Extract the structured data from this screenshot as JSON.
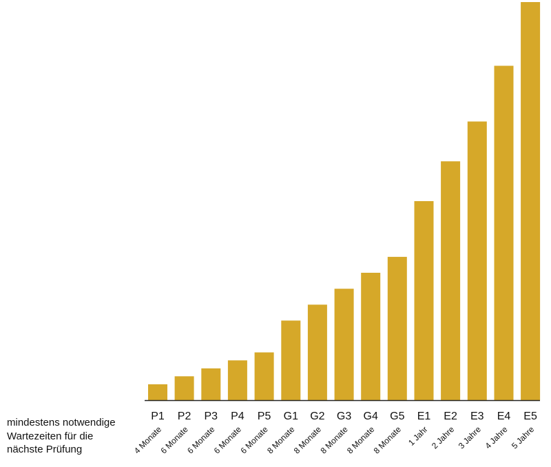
{
  "chart_data": {
    "type": "bar",
    "title": "",
    "xlabel": "",
    "ylabel": "",
    "ylim": [
      0,
      100
    ],
    "grid": false,
    "categories": [
      "P1",
      "P2",
      "P3",
      "P4",
      "P5",
      "G1",
      "G2",
      "G3",
      "G4",
      "G5",
      "E1",
      "E2",
      "E3",
      "E4",
      "E5"
    ],
    "values": [
      4,
      6,
      8,
      10,
      12,
      20,
      24,
      28,
      32,
      36,
      50,
      60,
      70,
      84,
      100
    ],
    "waiting_times": [
      "4 Monate",
      "6 Monate",
      "6 Monate",
      "6 Monate",
      "6 Monate",
      "8 Monate",
      "8 Monate",
      "8 Monate",
      "8 Monate",
      "8 Monate",
      "1 Jahr",
      "2 Jahre",
      "3 Jahre",
      "4 Jahre",
      "5 Jahre"
    ],
    "bar_color": "#D6A829",
    "axis_color": "#222222"
  },
  "note": {
    "lines": [
      "mindestens notwendige",
      "Wartezeiten für die",
      "nächste Prüfung"
    ]
  }
}
